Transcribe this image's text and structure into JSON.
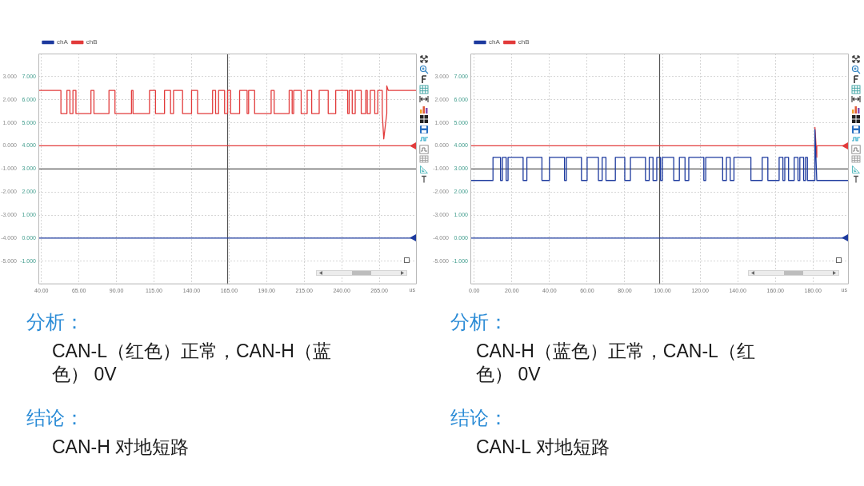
{
  "chart_data": [
    {
      "type": "line",
      "xlabel": "us",
      "xlim": [
        38,
        290
      ],
      "xticks": [
        {
          "value": 40,
          "label": "40.00"
        },
        {
          "value": 65,
          "label": "65.00"
        },
        {
          "value": 90,
          "label": "90.00"
        },
        {
          "value": 115,
          "label": "115.00"
        },
        {
          "value": 140,
          "label": "140.00"
        },
        {
          "value": 165,
          "label": "165.00"
        },
        {
          "value": 190,
          "label": "190.00"
        },
        {
          "value": 215,
          "label": "215.00"
        },
        {
          "value": 240,
          "label": "240.00"
        },
        {
          "value": 265,
          "label": "265.00"
        }
      ],
      "ylim": [
        -2,
        8
      ],
      "yticks": [
        {
          "value": -1,
          "label": "-1.000"
        },
        {
          "value": 0,
          "label": "0.000"
        },
        {
          "value": 1,
          "label": "1.000"
        },
        {
          "value": 2,
          "label": "2.000"
        },
        {
          "value": 3,
          "label": "3.000"
        },
        {
          "value": 4,
          "label": "4.000"
        },
        {
          "value": 5,
          "label": "5.000"
        },
        {
          "value": 6,
          "label": "6.000"
        },
        {
          "value": 7,
          "label": "7.000"
        }
      ],
      "y2lim": [
        -6,
        4
      ],
      "y2ticks": [
        {
          "value": -5,
          "label": "-5.000"
        },
        {
          "value": -4,
          "label": "-4.000"
        },
        {
          "value": -3,
          "label": "-3.000"
        },
        {
          "value": -2,
          "label": "-2.000"
        },
        {
          "value": -1,
          "label": "-1.000"
        },
        {
          "value": 0,
          "label": "0.000"
        },
        {
          "value": 1,
          "label": "1.000"
        },
        {
          "value": 2,
          "label": "2.000"
        },
        {
          "value": 3,
          "label": "3.000"
        }
      ],
      "series": [
        {
          "name": "chA",
          "color": "#1d3a9e",
          "x": [
            38,
            290
          ],
          "values": [
            0,
            0
          ]
        },
        {
          "name": "chB",
          "color": "#e23b3b",
          "axis": "y2",
          "x": [
            38,
            53,
            53,
            57,
            57,
            59,
            59,
            61,
            61,
            63,
            63,
            73,
            73,
            75,
            75,
            85,
            85,
            89,
            89,
            100,
            100,
            101,
            101,
            112,
            112,
            116,
            116,
            122,
            122,
            126,
            126,
            128,
            128,
            134,
            134,
            140,
            140,
            144,
            144,
            154,
            154,
            156,
            156,
            158,
            158,
            162,
            162,
            164,
            164,
            166,
            166,
            172,
            172,
            177,
            177,
            178,
            178,
            182,
            182,
            193,
            193,
            195,
            195,
            205,
            205,
            207,
            207,
            208,
            208,
            213,
            213,
            217,
            217,
            220,
            220,
            225,
            225,
            231,
            231,
            236,
            236,
            244,
            244,
            245,
            245,
            247,
            247,
            249,
            249,
            253,
            253,
            256,
            256,
            257,
            257,
            259,
            259,
            262,
            262,
            264,
            264,
            267,
            267,
            268,
            270,
            270,
            271,
            290
          ],
          "values": [
            2.4,
            2.4,
            1.4,
            1.4,
            2.4,
            2.4,
            1.4,
            1.4,
            2.4,
            2.4,
            1.4,
            1.4,
            2.4,
            2.4,
            1.4,
            1.4,
            2.4,
            2.4,
            1.4,
            1.4,
            2.4,
            2.4,
            1.4,
            1.4,
            2.4,
            2.4,
            1.4,
            1.4,
            2.4,
            2.4,
            1.4,
            1.4,
            2.4,
            2.4,
            1.4,
            1.4,
            2.4,
            2.4,
            1.4,
            1.4,
            2.4,
            2.4,
            1.4,
            1.4,
            2.4,
            2.4,
            1.4,
            1.4,
            2.4,
            2.4,
            1.4,
            1.4,
            2.4,
            2.4,
            1.4,
            1.4,
            2.4,
            2.4,
            1.4,
            1.4,
            2.4,
            2.4,
            1.4,
            1.4,
            2.4,
            2.4,
            1.4,
            1.4,
            2.4,
            2.4,
            1.4,
            1.4,
            2.4,
            2.4,
            1.4,
            1.4,
            2.4,
            2.4,
            1.4,
            1.4,
            2.4,
            2.4,
            1.4,
            1.4,
            2.4,
            2.4,
            1.4,
            1.4,
            2.4,
            2.4,
            1.4,
            1.4,
            2.4,
            2.4,
            1.4,
            1.4,
            2.4,
            2.4,
            1.4,
            1.4,
            2.4,
            2.4,
            1.4,
            0.3,
            1.4,
            2.6,
            2.4,
            2.4
          ]
        }
      ],
      "ref_lines": [
        {
          "axis": "x",
          "value": 164,
          "color": "#555555"
        },
        {
          "axis": "y",
          "value": 3,
          "color": "#555555"
        },
        {
          "axis": "y2",
          "value": 0,
          "color": "#e23b3b"
        }
      ],
      "grid": true,
      "legend": "top left",
      "marker": "none",
      "annotations": [
        "分析：",
        "CAN-L（红色）正常，CAN-H（蓝色） 0V",
        "结论：",
        "CAN-H 对地短路"
      ]
    },
    {
      "type": "line",
      "xlabel": "us",
      "xlim": [
        -2,
        199
      ],
      "xticks": [
        {
          "value": 0,
          "label": "0.00"
        },
        {
          "value": 20,
          "label": "20.00"
        },
        {
          "value": 40,
          "label": "40.00"
        },
        {
          "value": 60,
          "label": "60.00"
        },
        {
          "value": 80,
          "label": "80.00"
        },
        {
          "value": 100,
          "label": "100.00"
        },
        {
          "value": 120,
          "label": "120.00"
        },
        {
          "value": 140,
          "label": "140.00"
        },
        {
          "value": 160,
          "label": "160.00"
        },
        {
          "value": 180,
          "label": "180.00"
        }
      ],
      "ylim": [
        -2,
        8
      ],
      "yticks": [
        {
          "value": -1,
          "label": "-1.000"
        },
        {
          "value": 0,
          "label": "0.000"
        },
        {
          "value": 1,
          "label": "1.000"
        },
        {
          "value": 2,
          "label": "2.000"
        },
        {
          "value": 3,
          "label": "3.000"
        },
        {
          "value": 4,
          "label": "4.000"
        },
        {
          "value": 5,
          "label": "5.000"
        },
        {
          "value": 6,
          "label": "6.000"
        },
        {
          "value": 7,
          "label": "7.000"
        }
      ],
      "y2lim": [
        -6,
        4
      ],
      "y2ticks": [
        {
          "value": -5,
          "label": "-5.000"
        },
        {
          "value": -4,
          "label": "-4.000"
        },
        {
          "value": -3,
          "label": "-3.000"
        },
        {
          "value": -2,
          "label": "-2.000"
        },
        {
          "value": -1,
          "label": "-1.000"
        },
        {
          "value": 0,
          "label": "0.000"
        },
        {
          "value": 1,
          "label": "1.000"
        },
        {
          "value": 2,
          "label": "2.000"
        },
        {
          "value": 3,
          "label": "3.000"
        }
      ],
      "series": [
        {
          "name": "chA",
          "color": "#1d3a9e",
          "x": [
            -2,
            10,
            10,
            14,
            14,
            15,
            15,
            17,
            17,
            18,
            18,
            26,
            26,
            28,
            28,
            36,
            36,
            40,
            40,
            48,
            48,
            49,
            49,
            57,
            57,
            60,
            60,
            66,
            66,
            68,
            68,
            70,
            70,
            75,
            75,
            80,
            80,
            83,
            83,
            91,
            91,
            93,
            93,
            95,
            95,
            97,
            97,
            99,
            99,
            100,
            100,
            106,
            106,
            109,
            109,
            112,
            112,
            114,
            114,
            122,
            122,
            123,
            123,
            132,
            132,
            134,
            134,
            136,
            136,
            138,
            138,
            147,
            147,
            153,
            153,
            156,
            156,
            162,
            162,
            164,
            164,
            165,
            165,
            167,
            167,
            170,
            170,
            172,
            172,
            173,
            173,
            175,
            175,
            176,
            176,
            177,
            177,
            181,
            181,
            182,
            199
          ],
          "values": [
            2.5,
            2.5,
            3.5,
            3.5,
            2.5,
            2.5,
            3.5,
            3.5,
            2.5,
            2.5,
            3.5,
            3.5,
            2.5,
            2.5,
            3.5,
            3.5,
            2.5,
            2.5,
            3.5,
            3.5,
            2.5,
            2.5,
            3.5,
            3.5,
            2.5,
            2.5,
            3.5,
            3.5,
            2.5,
            2.5,
            3.5,
            3.5,
            2.5,
            2.5,
            3.5,
            3.5,
            2.5,
            2.5,
            3.5,
            3.5,
            2.5,
            2.5,
            3.5,
            3.5,
            2.5,
            2.5,
            3.5,
            3.5,
            2.5,
            2.5,
            3.5,
            3.5,
            2.5,
            2.5,
            3.5,
            3.5,
            2.5,
            2.5,
            3.5,
            3.5,
            2.5,
            2.5,
            3.5,
            3.5,
            2.5,
            2.5,
            3.5,
            3.5,
            2.5,
            2.5,
            3.5,
            3.5,
            2.5,
            2.5,
            3.5,
            3.5,
            2.5,
            2.5,
            3.5,
            3.5,
            2.5,
            2.5,
            3.5,
            3.5,
            2.5,
            2.5,
            3.5,
            3.5,
            2.5,
            2.5,
            3.5,
            3.5,
            2.5,
            2.5,
            3.5,
            3.5,
            2.5,
            2.5,
            4.7,
            2.5,
            2.5
          ]
        },
        {
          "name": "chB",
          "color": "#e23b3b",
          "axis": "y2",
          "x": [
            -2,
            181,
            181,
            182,
            182,
            199
          ],
          "values": [
            0,
            0,
            0.8,
            -0.5,
            0,
            0
          ]
        }
      ],
      "ref_lines": [
        {
          "axis": "x",
          "value": 98.5,
          "color": "#555555"
        },
        {
          "axis": "y",
          "value": 3,
          "color": "#555555"
        },
        {
          "axis": "y",
          "value": 0,
          "color": "#1d3a9e"
        }
      ],
      "grid": true,
      "legend": "top left",
      "marker": "none",
      "annotations": [
        "分析：",
        "CAN-H（蓝色）正常，CAN-L（红色） 0V",
        "结论：",
        "CAN-L 对地短路"
      ]
    }
  ]
}
